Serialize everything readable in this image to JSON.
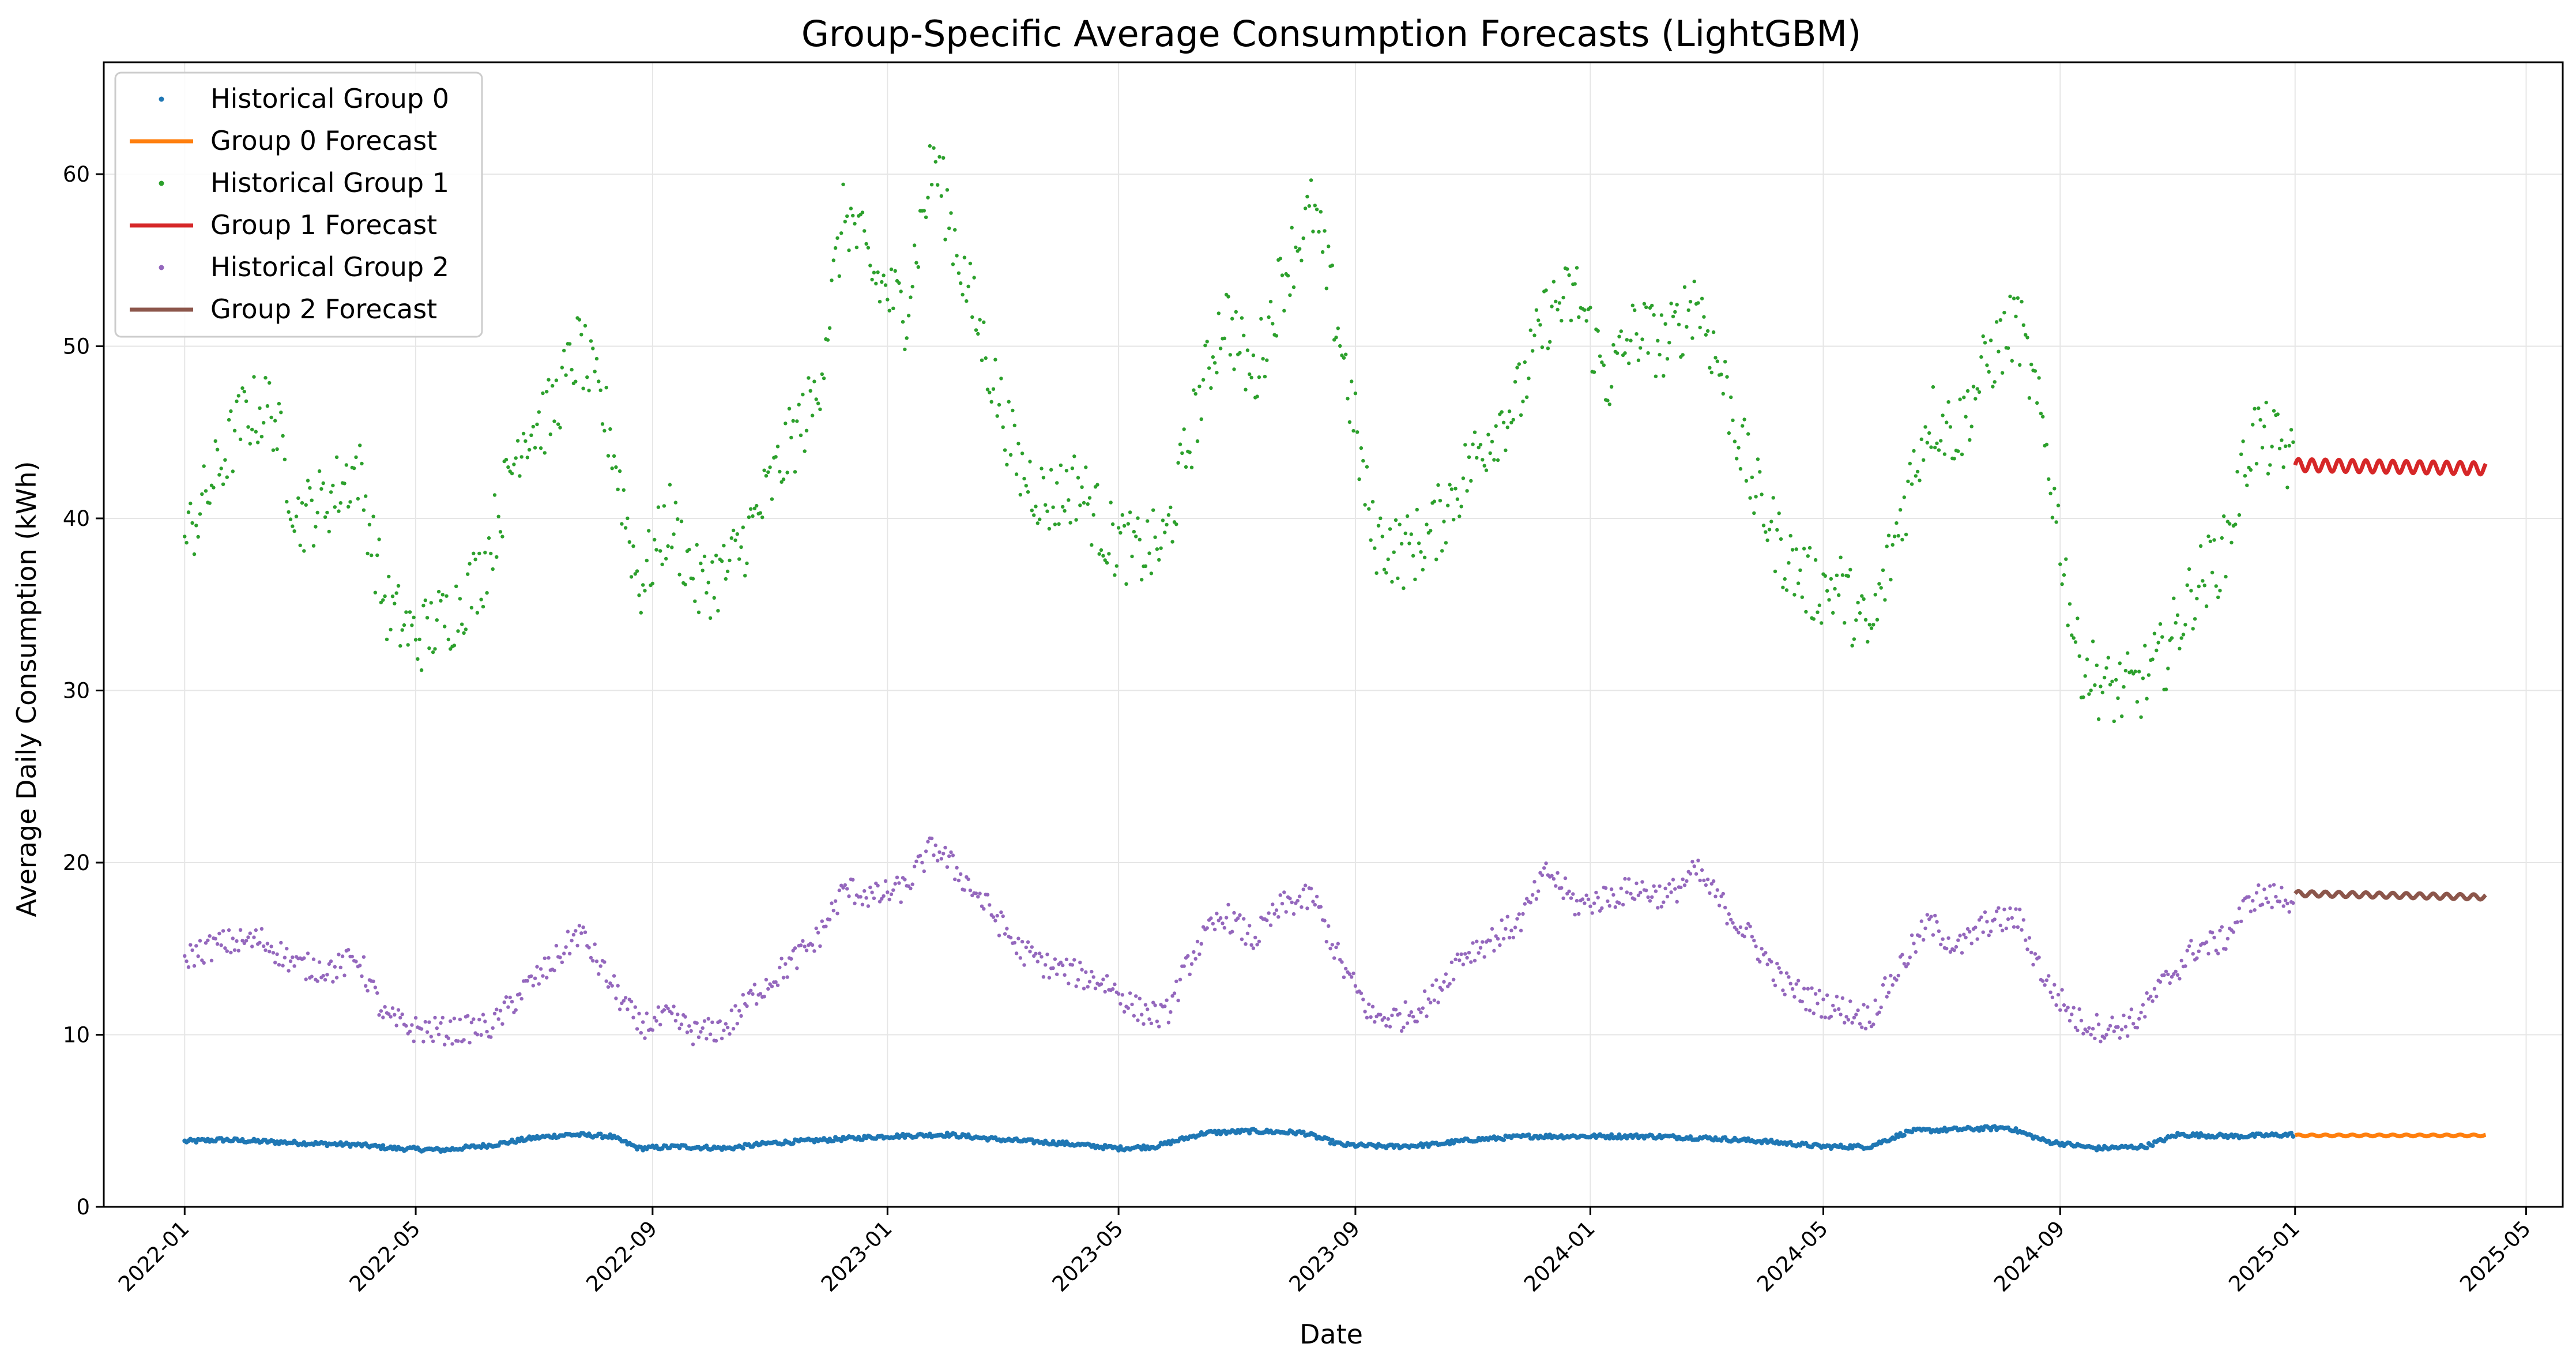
{
  "chart_data": {
    "type": "line",
    "title": "Group-Specific Average Consumption Forecasts (LightGBM)",
    "xlabel": "Date",
    "ylabel": "Average Daily Consumption (kWh)",
    "xlim": [
      "2021-11-20",
      "2025-05-20"
    ],
    "ylim": [
      0,
      66.5
    ],
    "yticks": [
      0,
      10,
      20,
      30,
      40,
      50,
      60
    ],
    "xticks": [
      "2022-01",
      "2022-05",
      "2022-09",
      "2023-01",
      "2023-05",
      "2023-09",
      "2024-01",
      "2024-05",
      "2024-09",
      "2025-01",
      "2025-05"
    ],
    "grid": true,
    "legend_position": "top-left",
    "forecast_start": "2025-01-01",
    "series": [
      {
        "name": "Historical Group 0",
        "kind": "historical",
        "color": "#1f77b4",
        "points": [
          [
            "2022-01-01",
            3.8
          ],
          [
            "2022-01-20",
            3.9
          ],
          [
            "2022-02-10",
            3.8
          ],
          [
            "2022-03-05",
            3.7
          ],
          [
            "2022-04-01",
            3.6
          ],
          [
            "2022-04-20",
            3.4
          ],
          [
            "2022-05-15",
            3.3
          ],
          [
            "2022-06-10",
            3.6
          ],
          [
            "2022-07-01",
            4.0
          ],
          [
            "2022-07-20",
            4.2
          ],
          [
            "2022-08-10",
            4.1
          ],
          [
            "2022-08-25",
            3.4
          ],
          [
            "2022-09-15",
            3.5
          ],
          [
            "2022-10-10",
            3.4
          ],
          [
            "2022-11-01",
            3.7
          ],
          [
            "2022-12-01",
            3.9
          ],
          [
            "2023-01-01",
            4.1
          ],
          [
            "2023-02-01",
            4.2
          ],
          [
            "2023-03-01",
            3.9
          ],
          [
            "2023-04-01",
            3.7
          ],
          [
            "2023-05-01",
            3.4
          ],
          [
            "2023-05-20",
            3.5
          ],
          [
            "2023-06-15",
            4.3
          ],
          [
            "2023-07-10",
            4.4
          ],
          [
            "2023-08-05",
            4.3
          ],
          [
            "2023-08-25",
            3.6
          ],
          [
            "2023-09-20",
            3.5
          ],
          [
            "2023-10-10",
            3.6
          ],
          [
            "2023-11-01",
            3.9
          ],
          [
            "2023-12-01",
            4.1
          ],
          [
            "2024-01-01",
            4.1
          ],
          [
            "2024-02-01",
            4.1
          ],
          [
            "2024-03-01",
            4.0
          ],
          [
            "2024-04-01",
            3.8
          ],
          [
            "2024-05-01",
            3.5
          ],
          [
            "2024-05-25",
            3.5
          ],
          [
            "2024-06-15",
            4.4
          ],
          [
            "2024-07-10",
            4.5
          ],
          [
            "2024-08-05",
            4.6
          ],
          [
            "2024-08-25",
            3.8
          ],
          [
            "2024-09-20",
            3.4
          ],
          [
            "2024-10-15",
            3.5
          ],
          [
            "2024-11-01",
            4.2
          ],
          [
            "2024-12-01",
            4.1
          ],
          [
            "2024-12-31",
            4.2
          ]
        ]
      },
      {
        "name": "Group 0 Forecast",
        "kind": "forecast",
        "color": "#ff7f0e",
        "base": 4.15,
        "amp": 0.05,
        "period_days": 7,
        "start": "2025-01-01",
        "end": "2025-04-10"
      },
      {
        "name": "Historical Group 1",
        "kind": "historical",
        "color": "#2ca02c",
        "points": [
          [
            "2022-01-01",
            38.5
          ],
          [
            "2022-01-15",
            42
          ],
          [
            "2022-02-01",
            46
          ],
          [
            "2022-02-15",
            46.5
          ],
          [
            "2022-03-01",
            40
          ],
          [
            "2022-03-15",
            41
          ],
          [
            "2022-04-01",
            43
          ],
          [
            "2022-04-15",
            35
          ],
          [
            "2022-05-01",
            33
          ],
          [
            "2022-05-20",
            34.5
          ],
          [
            "2022-06-05",
            37
          ],
          [
            "2022-06-25",
            45
          ],
          [
            "2022-07-10",
            46
          ],
          [
            "2022-07-25",
            50
          ],
          [
            "2022-08-10",
            45
          ],
          [
            "2022-08-25",
            36
          ],
          [
            "2022-09-10",
            40
          ],
          [
            "2022-09-25",
            36
          ],
          [
            "2022-10-10",
            37
          ],
          [
            "2022-10-25",
            40
          ],
          [
            "2022-11-10",
            44
          ],
          [
            "2022-11-25",
            47
          ],
          [
            "2022-12-10",
            58
          ],
          [
            "2022-12-25",
            54
          ],
          [
            "2023-01-10",
            52
          ],
          [
            "2023-01-25",
            61
          ],
          [
            "2023-02-10",
            54
          ],
          [
            "2023-02-25",
            48
          ],
          [
            "2023-03-10",
            43
          ],
          [
            "2023-03-25",
            41
          ],
          [
            "2023-04-10",
            42
          ],
          [
            "2023-04-25",
            39
          ],
          [
            "2023-05-10",
            38
          ],
          [
            "2023-05-25",
            38.5
          ],
          [
            "2023-06-10",
            46
          ],
          [
            "2023-06-25",
            52
          ],
          [
            "2023-07-10",
            48
          ],
          [
            "2023-07-25",
            54
          ],
          [
            "2023-08-10",
            58
          ],
          [
            "2023-08-25",
            50
          ],
          [
            "2023-09-10",
            39
          ],
          [
            "2023-09-25",
            38
          ],
          [
            "2023-10-10",
            39
          ],
          [
            "2023-10-25",
            42
          ],
          [
            "2023-11-10",
            45
          ],
          [
            "2023-11-25",
            47
          ],
          [
            "2023-12-10",
            52
          ],
          [
            "2023-12-25",
            53
          ],
          [
            "2024-01-10",
            48
          ],
          [
            "2024-01-25",
            51
          ],
          [
            "2024-02-10",
            50
          ],
          [
            "2024-02-25",
            53
          ],
          [
            "2024-03-10",
            48
          ],
          [
            "2024-03-25",
            42
          ],
          [
            "2024-04-10",
            38
          ],
          [
            "2024-04-25",
            36
          ],
          [
            "2024-05-10",
            36
          ],
          [
            "2024-05-25",
            33
          ],
          [
            "2024-06-10",
            40
          ],
          [
            "2024-06-25",
            46
          ],
          [
            "2024-07-10",
            45
          ],
          [
            "2024-07-25",
            49
          ],
          [
            "2024-08-10",
            51.5
          ],
          [
            "2024-08-25",
            44
          ],
          [
            "2024-09-10",
            32
          ],
          [
            "2024-09-25",
            30
          ],
          [
            "2024-10-10",
            30
          ],
          [
            "2024-10-25",
            32
          ],
          [
            "2024-11-10",
            36
          ],
          [
            "2024-11-25",
            38
          ],
          [
            "2024-12-10",
            45
          ],
          [
            "2024-12-25",
            44
          ],
          [
            "2024-12-31",
            43
          ]
        ]
      },
      {
        "name": "Group 1 Forecast",
        "kind": "forecast",
        "color": "#d62728",
        "base": 43.1,
        "amp": 0.35,
        "period_days": 7,
        "start": "2025-01-01",
        "end": "2025-04-10",
        "end_base": 42.9
      },
      {
        "name": "Historical Group 2",
        "kind": "historical",
        "color": "#9467bd",
        "points": [
          [
            "2022-01-01",
            14.5
          ],
          [
            "2022-01-20",
            15.3
          ],
          [
            "2022-02-10",
            15.5
          ],
          [
            "2022-03-01",
            14
          ],
          [
            "2022-03-20",
            13.8
          ],
          [
            "2022-04-01",
            14.5
          ],
          [
            "2022-04-15",
            11
          ],
          [
            "2022-05-01",
            10.3
          ],
          [
            "2022-05-20",
            10.2
          ],
          [
            "2022-06-10",
            10.5
          ],
          [
            "2022-06-25",
            12.5
          ],
          [
            "2022-07-10",
            14
          ],
          [
            "2022-07-25",
            16
          ],
          [
            "2022-08-10",
            13
          ],
          [
            "2022-08-25",
            10.5
          ],
          [
            "2022-09-10",
            11
          ],
          [
            "2022-09-25",
            10
          ],
          [
            "2022-10-10",
            10.5
          ],
          [
            "2022-10-25",
            12.5
          ],
          [
            "2022-11-10",
            14
          ],
          [
            "2022-11-25",
            15.5
          ],
          [
            "2022-12-10",
            18.5
          ],
          [
            "2022-12-25",
            18
          ],
          [
            "2023-01-10",
            18.5
          ],
          [
            "2023-01-25",
            21
          ],
          [
            "2023-02-10",
            19
          ],
          [
            "2023-02-25",
            17
          ],
          [
            "2023-03-10",
            15
          ],
          [
            "2023-03-25",
            14
          ],
          [
            "2023-04-10",
            13.5
          ],
          [
            "2023-04-25",
            13
          ],
          [
            "2023-05-10",
            11.5
          ],
          [
            "2023-05-25",
            11
          ],
          [
            "2023-06-10",
            15
          ],
          [
            "2023-06-25",
            17
          ],
          [
            "2023-07-10",
            15.5
          ],
          [
            "2023-07-25",
            17.5
          ],
          [
            "2023-08-10",
            18
          ],
          [
            "2023-08-25",
            14
          ],
          [
            "2023-09-10",
            11
          ],
          [
            "2023-09-25",
            11
          ],
          [
            "2023-10-10",
            12
          ],
          [
            "2023-10-25",
            14.5
          ],
          [
            "2023-11-10",
            15.5
          ],
          [
            "2023-11-25",
            16.5
          ],
          [
            "2023-12-10",
            19.5
          ],
          [
            "2023-12-25",
            17.5
          ],
          [
            "2024-01-10",
            18
          ],
          [
            "2024-01-25",
            18.5
          ],
          [
            "2024-02-10",
            18
          ],
          [
            "2024-02-25",
            19.5
          ],
          [
            "2024-03-10",
            17.5
          ],
          [
            "2024-03-25",
            15.5
          ],
          [
            "2024-04-10",
            13
          ],
          [
            "2024-04-25",
            12
          ],
          [
            "2024-05-10",
            11.5
          ],
          [
            "2024-05-25",
            11
          ],
          [
            "2024-06-10",
            14
          ],
          [
            "2024-06-25",
            16.5
          ],
          [
            "2024-07-10",
            15
          ],
          [
            "2024-07-25",
            16.5
          ],
          [
            "2024-08-10",
            16.8
          ],
          [
            "2024-08-25",
            13
          ],
          [
            "2024-09-10",
            10.8
          ],
          [
            "2024-09-25",
            10.3
          ],
          [
            "2024-10-10",
            10.8
          ],
          [
            "2024-10-25",
            13
          ],
          [
            "2024-11-10",
            15
          ],
          [
            "2024-11-25",
            15.5
          ],
          [
            "2024-12-10",
            18
          ],
          [
            "2024-12-25",
            18
          ],
          [
            "2024-12-31",
            17.8
          ]
        ]
      },
      {
        "name": "Group 2 Forecast",
        "kind": "forecast",
        "color": "#8c564b",
        "base": 18.2,
        "amp": 0.15,
        "period_days": 7,
        "start": "2025-01-01",
        "end": "2025-04-10",
        "end_base": 18.0
      }
    ]
  }
}
